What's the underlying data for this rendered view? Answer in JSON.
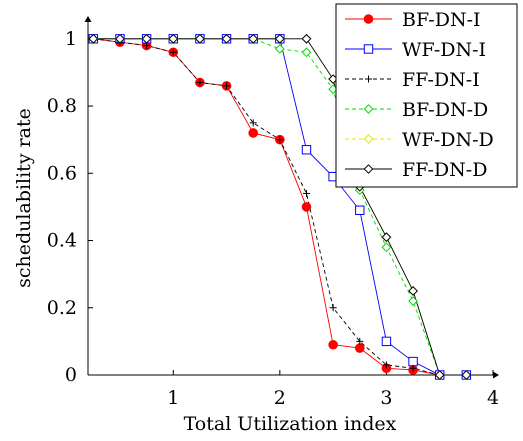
{
  "chart_data": {
    "type": "line",
    "xlabel": "Total Utilization index",
    "ylabel": "schedulability rate",
    "xlim": [
      0.2,
      4.0
    ],
    "ylim": [
      0,
      1.05
    ],
    "xticks": [
      {
        "v": 1,
        "label": "1"
      },
      {
        "v": 2,
        "label": "2"
      },
      {
        "v": 3,
        "label": "3"
      },
      {
        "v": 4,
        "label": "4"
      }
    ],
    "yticks": [
      {
        "v": 0,
        "label": "0"
      },
      {
        "v": 0.2,
        "label": "0.2"
      },
      {
        "v": 0.4,
        "label": "0.4"
      },
      {
        "v": 0.6,
        "label": "0.6"
      },
      {
        "v": 0.8,
        "label": "0.8"
      },
      {
        "v": 1,
        "label": "1"
      }
    ],
    "grid": false,
    "legend_position": "top-right",
    "x": [
      0.25,
      0.5,
      0.75,
      1.0,
      1.25,
      1.5,
      1.75,
      2.0,
      2.25,
      2.5,
      2.75,
      3.0,
      3.25,
      3.5,
      3.75
    ],
    "series": [
      {
        "name": "BF-DN-I",
        "color": "#ff0000",
        "marker": "filled-circle",
        "dash": "solid",
        "values": [
          1.0,
          0.99,
          0.98,
          0.96,
          0.87,
          0.86,
          0.72,
          0.7,
          0.5,
          0.09,
          0.08,
          0.02,
          0.015,
          0.0,
          0.0
        ]
      },
      {
        "name": "WF-DN-I",
        "color": "#0000ff",
        "marker": "open-square",
        "dash": "solid",
        "values": [
          1.0,
          1.0,
          1.0,
          1.0,
          1.0,
          1.0,
          1.0,
          1.0,
          0.67,
          0.59,
          0.49,
          0.1,
          0.04,
          0.0,
          0.0
        ]
      },
      {
        "name": "FF-DN-I",
        "color": "#000000",
        "marker": "plus",
        "dash": "dashed",
        "values": [
          1.0,
          0.99,
          0.98,
          0.96,
          0.87,
          0.86,
          0.75,
          0.7,
          0.54,
          0.2,
          0.1,
          0.03,
          0.02,
          0.0,
          0.0
        ]
      },
      {
        "name": "BF-DN-D",
        "color": "#00dd00",
        "marker": "open-diamond",
        "dash": "dashed",
        "values": [
          1.0,
          1.0,
          1.0,
          1.0,
          1.0,
          1.0,
          1.0,
          0.97,
          0.96,
          0.85,
          0.55,
          0.38,
          0.22,
          0.0,
          0.0
        ]
      },
      {
        "name": "WF-DN-D",
        "color": "#e6e600",
        "marker": "open-diamond",
        "dash": "dashed",
        "values": [
          1.0,
          1.0,
          1.0,
          1.0,
          1.0,
          1.0,
          1.0,
          1.0,
          1.0,
          0.88,
          0.56,
          0.41,
          0.25,
          0.0,
          0.0
        ]
      },
      {
        "name": "FF-DN-D",
        "color": "#000000",
        "marker": "open-diamond",
        "dash": "solid",
        "values": [
          1.0,
          1.0,
          1.0,
          1.0,
          1.0,
          1.0,
          1.0,
          1.0,
          1.0,
          0.88,
          0.56,
          0.41,
          0.25,
          0.0,
          0.0
        ]
      }
    ]
  }
}
